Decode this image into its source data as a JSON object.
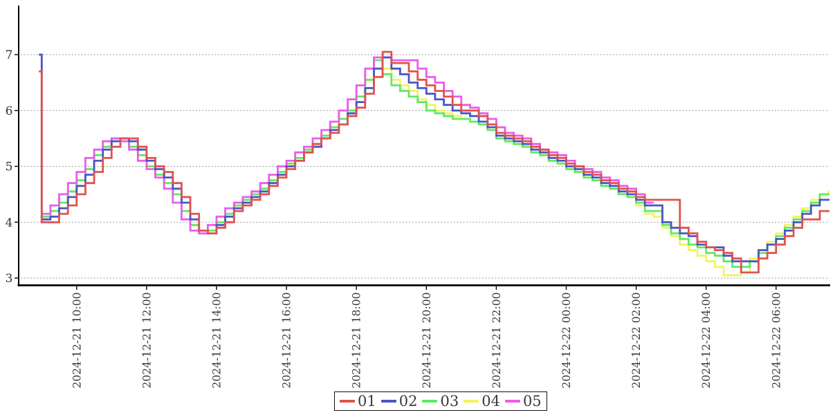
{
  "chart": {
    "background": "#ffffff",
    "y_axis": {
      "tick_values": [
        7,
        6,
        5,
        4,
        3
      ],
      "tick_labels": [
        "7",
        "6",
        "5",
        "4",
        "3"
      ],
      "gridlines": "dashed-horizontal",
      "grid_color": "#999999",
      "axis_color": "#000000"
    },
    "x_axis": {
      "tick_labels": [
        "2024-12-21 10:00",
        "2024-12-21 12:00",
        "2024-12-21 14:00",
        "2024-12-21 16:00",
        "2024-12-21 18:00",
        "2024-12-21 20:00",
        "2024-12-21 22:00",
        "2024-12-22 00:00",
        "2024-12-22 02:00",
        "2024-12-22 04:00",
        "2024-12-22 06:00"
      ],
      "tick_interval_hours": 2,
      "label_rotation_deg": 90
    },
    "legend": {
      "position": "bottom-center",
      "border_color": "#111111",
      "items": [
        {
          "label": "01",
          "color": "#e0524e"
        },
        {
          "label": "02",
          "color": "#4a55c5"
        },
        {
          "label": "03",
          "color": "#60ea60"
        },
        {
          "label": "04",
          "color": "#f3f360"
        },
        {
          "label": "05",
          "color": "#ea5cea"
        }
      ]
    }
  },
  "chart_data": {
    "type": "line",
    "step": true,
    "title": "",
    "xlabel": "",
    "ylabel": "",
    "ylim": [
      2.9,
      7.9
    ],
    "x_start": "2024-12-21 09:00",
    "sample_interval_minutes": 15,
    "spike_time_hours": 8.92,
    "grid_start_hours": 9.0,
    "legend_position": "bottom-center",
    "draw_order": [
      "04",
      "03",
      "05",
      "02",
      "01"
    ],
    "series": [
      {
        "name": "01",
        "color": "#e0524e",
        "init_spike_value": 6.7,
        "values": [
          4.0,
          4.0,
          4.15,
          4.3,
          4.5,
          4.7,
          4.9,
          5.15,
          5.35,
          5.5,
          5.5,
          5.35,
          5.15,
          5.0,
          4.9,
          4.7,
          4.45,
          4.15,
          3.85,
          3.8,
          3.9,
          4.0,
          4.2,
          4.3,
          4.4,
          4.5,
          4.65,
          4.8,
          4.95,
          5.1,
          5.25,
          5.4,
          5.5,
          5.6,
          5.75,
          5.9,
          6.05,
          6.3,
          6.6,
          7.05,
          6.85,
          6.85,
          6.7,
          6.55,
          6.45,
          6.35,
          6.25,
          6.1,
          6.0,
          6.0,
          5.9,
          5.75,
          5.6,
          5.55,
          5.5,
          5.45,
          5.35,
          5.3,
          5.2,
          5.15,
          5.05,
          5.0,
          4.9,
          4.85,
          4.75,
          4.7,
          4.6,
          4.55,
          4.45,
          4.4,
          4.4,
          4.4,
          4.4,
          3.9,
          3.8,
          3.65,
          3.55,
          3.5,
          3.45,
          3.35,
          3.1,
          3.1,
          3.35,
          3.45,
          3.6,
          3.75,
          3.9,
          4.05,
          4.05,
          4.2,
          4.2
        ]
      },
      {
        "name": "02",
        "color": "#4a55c5",
        "init_spike_value": 7.0,
        "values": [
          4.05,
          4.1,
          4.25,
          4.45,
          4.65,
          4.85,
          5.1,
          5.3,
          5.45,
          5.5,
          5.45,
          5.3,
          5.1,
          4.95,
          4.8,
          4.6,
          4.35,
          4.05,
          3.85,
          3.8,
          3.95,
          4.1,
          4.25,
          4.35,
          4.45,
          4.55,
          4.7,
          4.85,
          5.0,
          5.1,
          5.25,
          5.35,
          5.5,
          5.65,
          5.75,
          5.95,
          6.15,
          6.4,
          6.75,
          6.95,
          6.75,
          6.65,
          6.5,
          6.4,
          6.3,
          6.2,
          6.1,
          6.0,
          5.95,
          5.9,
          5.8,
          5.7,
          5.55,
          5.5,
          5.45,
          5.4,
          5.3,
          5.25,
          5.15,
          5.1,
          5.0,
          4.95,
          4.85,
          4.8,
          4.7,
          4.65,
          4.55,
          4.5,
          4.4,
          4.3,
          4.3,
          4.0,
          3.9,
          3.8,
          3.75,
          3.6,
          3.55,
          3.55,
          3.4,
          3.3,
          3.3,
          3.3,
          3.5,
          3.6,
          3.7,
          3.85,
          4.0,
          4.15,
          4.3,
          4.4,
          4.4
        ]
      },
      {
        "name": "03",
        "color": "#60ea60",
        "init_spike_value": null,
        "values": [
          4.1,
          4.2,
          4.35,
          4.55,
          4.75,
          4.95,
          5.2,
          5.35,
          5.5,
          5.5,
          5.35,
          5.2,
          5.0,
          4.85,
          4.7,
          4.5,
          4.2,
          3.95,
          3.8,
          3.85,
          4.0,
          4.15,
          4.3,
          4.4,
          4.5,
          4.6,
          4.75,
          4.9,
          5.05,
          5.15,
          5.3,
          5.4,
          5.55,
          5.7,
          5.85,
          6.0,
          6.25,
          6.55,
          6.9,
          6.65,
          6.45,
          6.35,
          6.25,
          6.15,
          6.0,
          5.95,
          5.9,
          5.85,
          5.85,
          5.8,
          5.75,
          5.65,
          5.5,
          5.45,
          5.4,
          5.35,
          5.25,
          5.2,
          5.1,
          5.05,
          4.95,
          4.9,
          4.8,
          4.75,
          4.65,
          4.6,
          4.5,
          4.45,
          4.35,
          4.2,
          4.2,
          3.95,
          3.8,
          3.7,
          3.6,
          3.55,
          3.45,
          3.4,
          3.3,
          3.2,
          3.2,
          3.3,
          3.45,
          3.6,
          3.75,
          3.9,
          4.05,
          4.2,
          4.35,
          4.5,
          4.5
        ]
      },
      {
        "name": "04",
        "color": "#f3f360",
        "init_spike_value": null,
        "values": [
          4.1,
          4.2,
          4.35,
          4.55,
          4.75,
          4.95,
          5.2,
          5.35,
          5.5,
          5.5,
          5.35,
          5.2,
          5.0,
          4.85,
          4.7,
          4.5,
          4.2,
          3.95,
          3.8,
          3.85,
          4.0,
          4.15,
          4.3,
          4.4,
          4.5,
          4.6,
          4.75,
          4.9,
          5.05,
          5.15,
          5.3,
          5.4,
          5.55,
          5.7,
          5.85,
          6.0,
          6.25,
          6.55,
          6.9,
          6.75,
          6.55,
          6.45,
          6.35,
          6.2,
          6.1,
          6.0,
          5.95,
          5.9,
          5.85,
          5.8,
          5.75,
          5.65,
          5.5,
          5.45,
          5.4,
          5.35,
          5.25,
          5.2,
          5.1,
          5.05,
          4.95,
          4.9,
          4.8,
          4.75,
          4.65,
          4.6,
          4.5,
          4.45,
          4.3,
          4.15,
          4.1,
          3.9,
          3.75,
          3.6,
          3.5,
          3.4,
          3.3,
          3.2,
          3.05,
          3.05,
          3.1,
          3.35,
          3.5,
          3.65,
          3.8,
          3.95,
          4.1,
          4.25,
          4.4,
          4.5,
          4.55
        ]
      },
      {
        "name": "05",
        "color": "#ea5cea",
        "init_spike_value": null,
        "values": [
          4.15,
          4.3,
          4.5,
          4.7,
          4.9,
          5.15,
          5.3,
          5.45,
          5.5,
          5.45,
          5.3,
          5.1,
          4.95,
          4.8,
          4.6,
          4.35,
          4.05,
          3.85,
          3.8,
          3.95,
          4.1,
          4.25,
          4.35,
          4.45,
          4.55,
          4.7,
          4.85,
          5.0,
          5.1,
          5.25,
          5.35,
          5.5,
          5.65,
          5.8,
          6.0,
          6.2,
          6.45,
          6.75,
          6.95,
          6.95,
          6.9,
          6.9,
          6.9,
          6.75,
          6.6,
          6.5,
          6.35,
          6.25,
          6.1,
          6.05,
          5.95,
          5.85,
          5.7,
          5.6,
          5.55,
          5.5,
          5.4,
          5.3,
          5.25,
          5.2,
          5.1,
          5.0,
          4.95,
          4.9,
          4.8,
          4.75,
          4.65,
          4.6,
          4.5,
          4.35
        ]
      }
    ]
  }
}
